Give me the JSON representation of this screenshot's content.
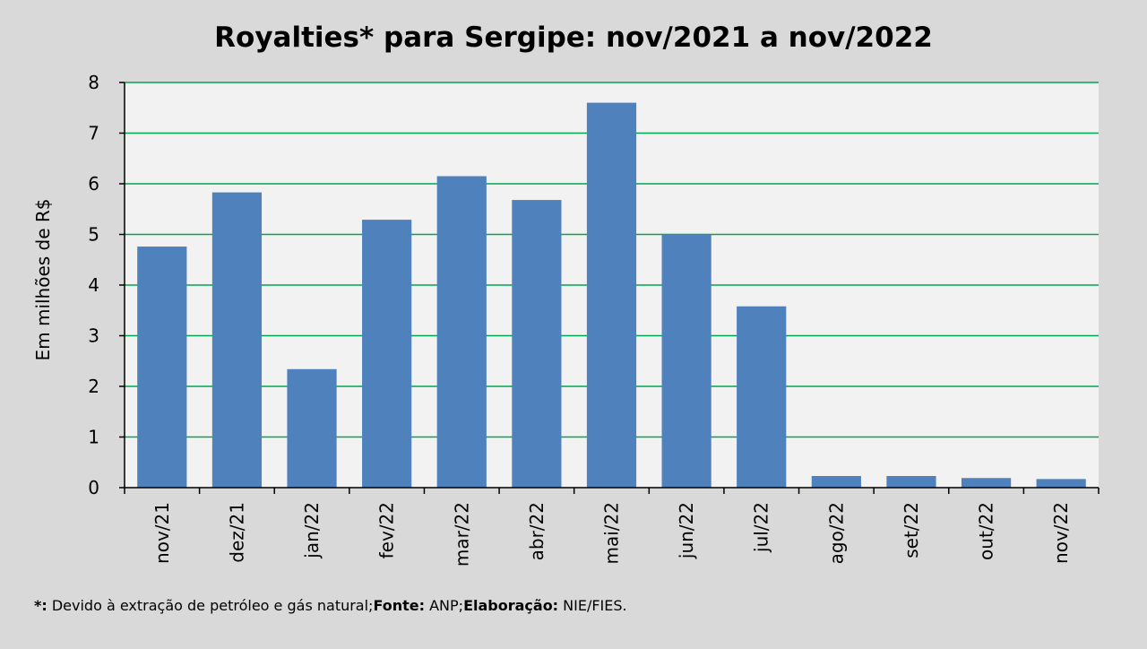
{
  "chart_data": {
    "type": "bar",
    "title": "Royalties* para Sergipe: nov/2021 a nov/2022",
    "ylabel": "Em milhões de R$",
    "xlabel": "",
    "categories": [
      "nov/21",
      "dez/21",
      "jan/22",
      "fev/22",
      "mar/22",
      "abr/22",
      "mai/22",
      "jun/22",
      "jul/22",
      "ago/22",
      "set/22",
      "out/22",
      "nov/22"
    ],
    "values": [
      4.76,
      5.83,
      2.34,
      5.29,
      6.15,
      5.68,
      7.6,
      5.0,
      3.58,
      0.23,
      0.23,
      0.19,
      0.17
    ],
    "ylim": [
      0,
      8
    ],
    "yticks": [
      "0",
      "1",
      "2",
      "3",
      "4",
      "5",
      "6",
      "7",
      "8"
    ],
    "grid": true,
    "colors": {
      "bar": "#4f81bd",
      "grid": "#00a651",
      "plot_bg": "#f2f2f2",
      "page_bg": "#d9d9d9"
    }
  },
  "footnote": {
    "marker": "*:",
    "text1": " Devido à extração de petróleo e gás natural;",
    "fonte_label": "Fonte:",
    "fonte_value": " ANP;",
    "elab_label": "Elaboração:",
    "elab_value": " NIE/FIES."
  }
}
